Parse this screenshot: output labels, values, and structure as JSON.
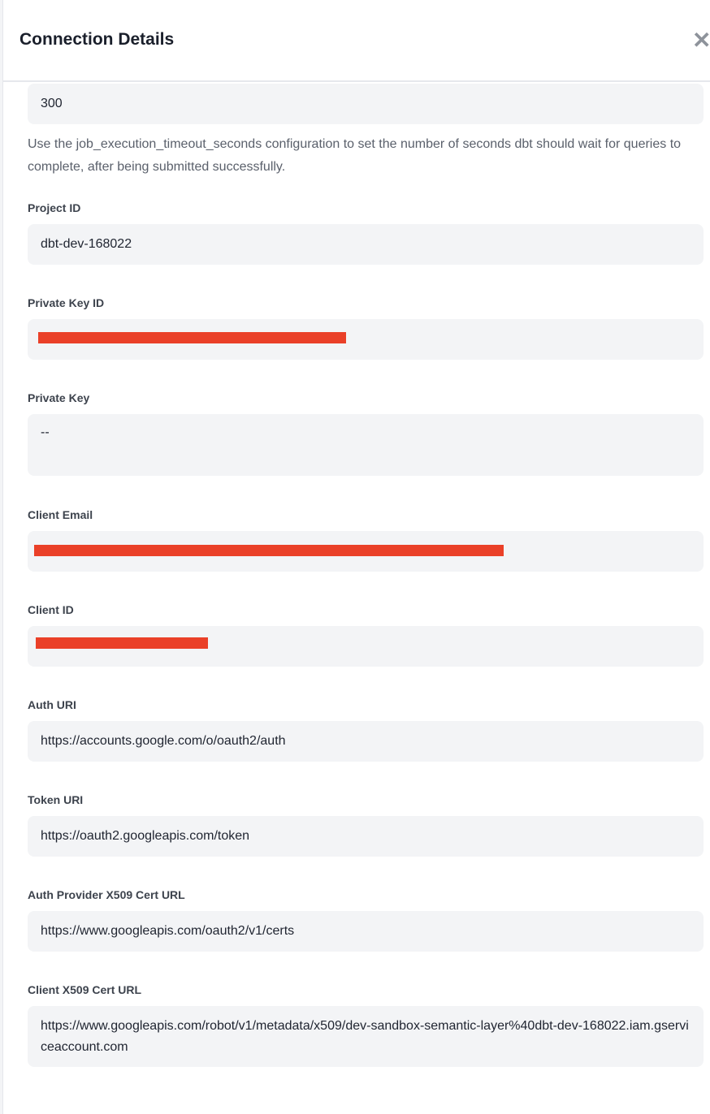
{
  "header": {
    "title": "Connection Details",
    "close_icon": "close-icon"
  },
  "timeout": {
    "value": "300",
    "help": "Use the job_execution_timeout_seconds configuration to set the number of seconds dbt should wait for queries to complete, after being submitted successfully."
  },
  "fields": [
    {
      "label": "Project ID",
      "value": "dbt-dev-168022"
    },
    {
      "label": "Private Key ID",
      "value": ""
    },
    {
      "label": "Private Key",
      "value": "--"
    },
    {
      "label": "Client Email",
      "value": ""
    },
    {
      "label": "Client ID",
      "value": ""
    },
    {
      "label": "Auth URI",
      "value": "https://accounts.google.com/o/oauth2/auth"
    },
    {
      "label": "Token URI",
      "value": "https://oauth2.googleapis.com/token"
    },
    {
      "label": "Auth Provider X509 Cert URL",
      "value": "https://www.googleapis.com/oauth2/v1/certs"
    },
    {
      "label": "Client X509 Cert URL",
      "value": "https://www.googleapis.com/robot/v1/metadata/x509/dev-sandbox-semantic-layer%40dbt-dev-168022.iam.gserviceaccount.com"
    }
  ],
  "colors": {
    "redaction": "#ea4028",
    "field_bg": "#f3f4f6"
  }
}
